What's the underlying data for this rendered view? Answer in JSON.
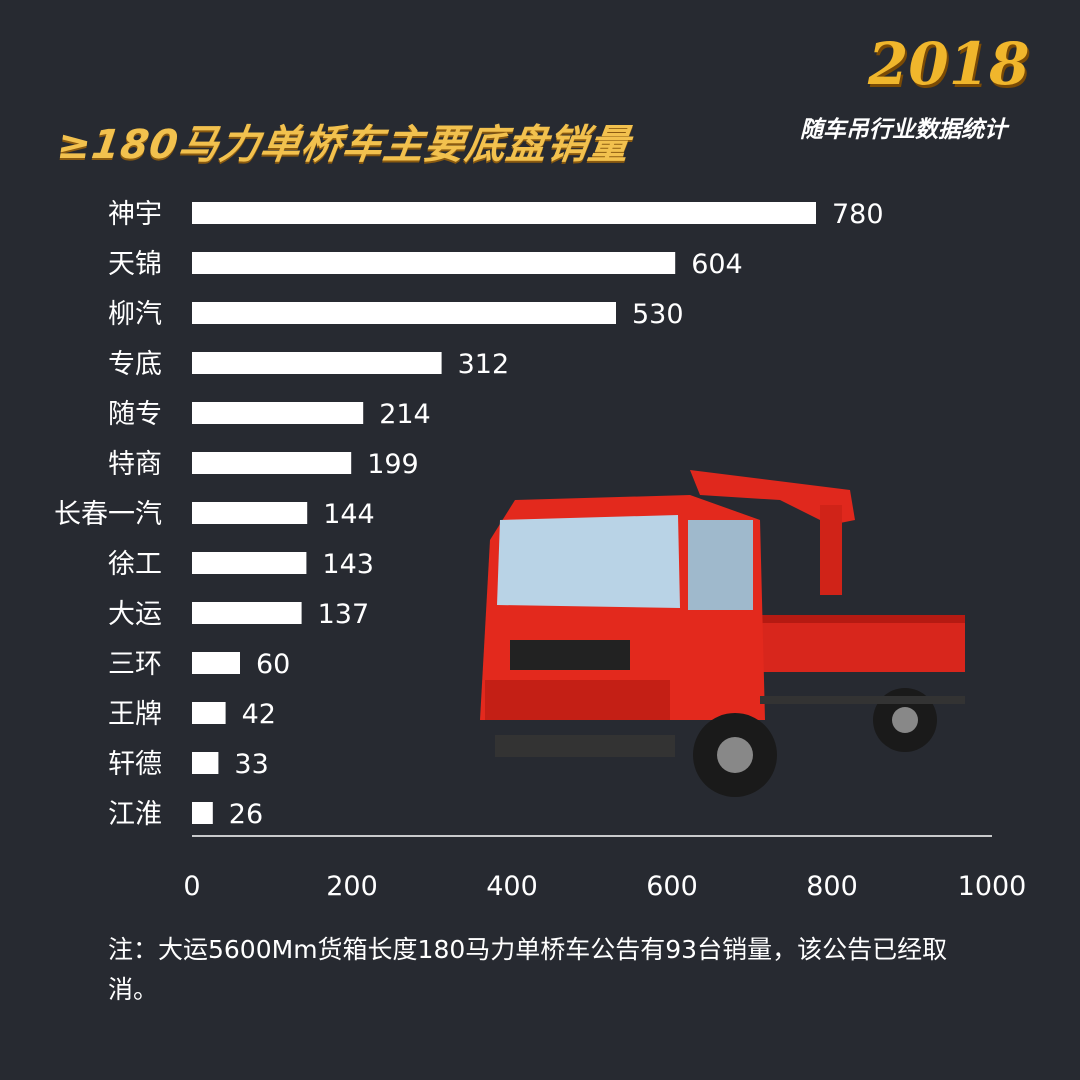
{
  "logo": {
    "year": "2018",
    "subtitle": "随车吊行业数据统计"
  },
  "chart_data": {
    "type": "bar",
    "orientation": "horizontal",
    "title": "≥180马力单桥车主要底盘销量",
    "categories": [
      "神宇",
      "天锦",
      "柳汽",
      "专底",
      "随专",
      "特商",
      "长春一汽",
      "徐工",
      "大运",
      "三环",
      "王牌",
      "轩德",
      "江淮"
    ],
    "values": [
      780,
      604,
      530,
      312,
      214,
      199,
      144,
      143,
      137,
      60,
      42,
      33,
      26
    ],
    "xlim": [
      0,
      1000
    ],
    "xticks": [
      "0",
      "200",
      "400",
      "600",
      "800",
      "1000"
    ],
    "grid": false,
    "bar_color": "#ffffff"
  },
  "note": "注：大运5600Mm货箱长度180马力单桥车公告有93台销量，该公告已经取消。"
}
